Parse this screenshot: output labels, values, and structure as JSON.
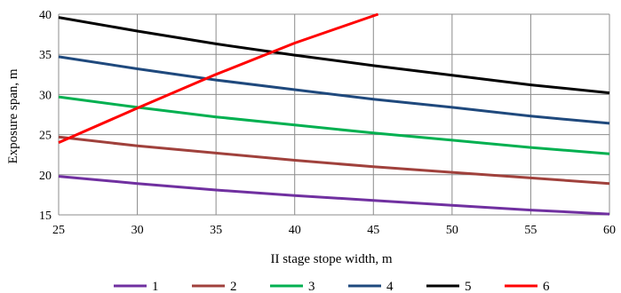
{
  "chart_data": {
    "type": "line",
    "xlabel": "II stage stope width, m",
    "ylabel": "Exposure span, m",
    "xlim": [
      25,
      60
    ],
    "ylim": [
      15,
      40
    ],
    "xticks": [
      25,
      30,
      35,
      40,
      45,
      50,
      55,
      60
    ],
    "yticks": [
      15,
      20,
      25,
      30,
      35,
      40
    ],
    "grid": true,
    "legend_position": "bottom",
    "series": [
      {
        "name": "1",
        "color": "#7030A0",
        "x": [
          25,
          30,
          35,
          40,
          45,
          50,
          55,
          60
        ],
        "y": [
          19.8,
          18.9,
          18.1,
          17.4,
          16.8,
          16.2,
          15.6,
          15.1
        ]
      },
      {
        "name": "2",
        "color": "#A0413C",
        "x": [
          25,
          30,
          35,
          40,
          45,
          50,
          55,
          60
        ],
        "y": [
          24.7,
          23.6,
          22.7,
          21.8,
          21.0,
          20.3,
          19.6,
          18.9
        ]
      },
      {
        "name": "3",
        "color": "#00B050",
        "x": [
          25,
          30,
          35,
          40,
          45,
          50,
          55,
          60
        ],
        "y": [
          29.7,
          28.4,
          27.2,
          26.2,
          25.2,
          24.3,
          23.4,
          22.6
        ]
      },
      {
        "name": "4",
        "color": "#1F497D",
        "x": [
          25,
          30,
          35,
          40,
          45,
          50,
          55,
          60
        ],
        "y": [
          34.7,
          33.2,
          31.8,
          30.6,
          29.4,
          28.4,
          27.3,
          26.4
        ]
      },
      {
        "name": "5",
        "color": "#000000",
        "x": [
          25,
          30,
          35,
          40,
          45,
          50,
          55,
          60
        ],
        "y": [
          39.6,
          37.9,
          36.3,
          34.9,
          33.6,
          32.4,
          31.2,
          30.2
        ]
      },
      {
        "name": "6",
        "color": "#FF0000",
        "x": [
          25,
          30,
          35,
          40,
          45.3
        ],
        "y": [
          24.0,
          28.3,
          32.5,
          36.4,
          40.0
        ]
      }
    ]
  }
}
